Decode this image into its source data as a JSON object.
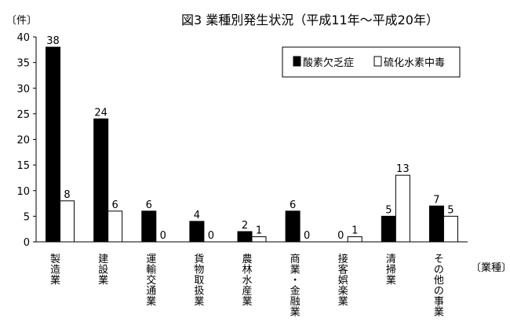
{
  "chart_data": {
    "type": "bar",
    "title": "図3 業種別発生状況（平成11年～平成20年）",
    "y_unit": "〔件〕",
    "x_unit": "〔業種〕",
    "ylim": [
      0,
      40
    ],
    "yticks": [
      0,
      5,
      10,
      15,
      20,
      25,
      30,
      35,
      40
    ],
    "grid": false,
    "legend_position": "top-right",
    "categories": [
      "製造業",
      "建設業",
      "運輸交通業",
      "貨物取扱業",
      "農林水産業",
      "商業・金融業",
      "接客娯楽業",
      "清掃業",
      "その他の事業"
    ],
    "series": [
      {
        "name": "酸素欠乏症",
        "color": "#000000",
        "values": [
          38,
          24,
          6,
          4,
          2,
          6,
          0,
          5,
          7
        ]
      },
      {
        "name": "硫化水素中毒",
        "color": "#ffffff",
        "values": [
          8,
          6,
          0,
          0,
          1,
          0,
          1,
          13,
          5
        ]
      }
    ]
  }
}
